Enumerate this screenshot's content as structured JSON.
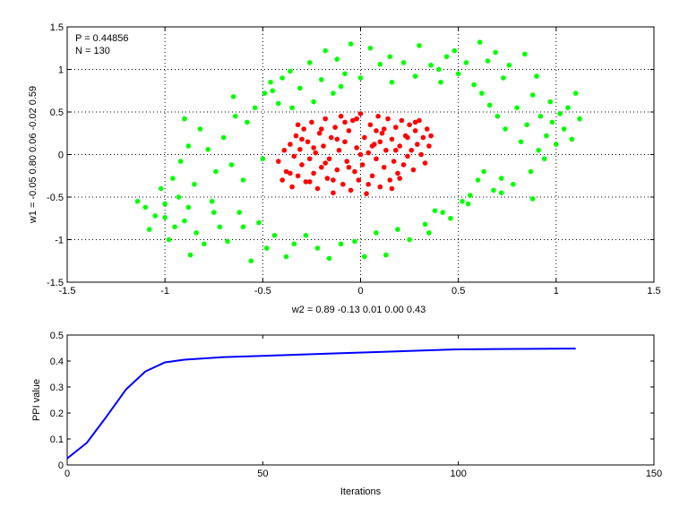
{
  "chart_data": [
    {
      "type": "scatter",
      "annotations": [
        "P = 0.44856",
        "N = 130"
      ],
      "xlabel": "w2 = 0.89  -0.13  0.01  0.00  0.43",
      "ylabel": "w1 = -0.05  0.80  0.06  -0.02  0.59",
      "xlim": [
        -1.5,
        1.5
      ],
      "ylim": [
        -1.5,
        1.5
      ],
      "xticks": [
        -1.5,
        -1,
        -0.5,
        0,
        0.5,
        1,
        1.5
      ],
      "yticks": [
        -1.5,
        -1,
        -0.5,
        0,
        0.5,
        1,
        1.5
      ],
      "xtick_labels": [
        "-1.5",
        "-1",
        "-0.5",
        "0",
        "0.5",
        "1",
        "1.5"
      ],
      "ytick_labels": [
        "-1.5",
        "-1",
        "-0.5",
        "0",
        "0.5",
        "1",
        "1.5"
      ],
      "grid": true,
      "series": [
        {
          "color": "#00ff00",
          "points": [
            [
              -1.14,
              -0.55
            ],
            [
              -1.1,
              -0.62
            ],
            [
              -1.08,
              -0.88
            ],
            [
              -1.05,
              -0.72
            ],
            [
              -1.02,
              -0.4
            ],
            [
              -1.0,
              -0.74
            ],
            [
              -0.98,
              -1.0
            ],
            [
              -0.96,
              -0.28
            ],
            [
              -0.95,
              -0.85
            ],
            [
              -0.93,
              -0.5
            ],
            [
              -0.92,
              -0.08
            ],
            [
              -0.9,
              -0.78
            ],
            [
              -0.88,
              0.1
            ],
            [
              -0.87,
              -1.18
            ],
            [
              -0.85,
              -0.35
            ],
            [
              -0.84,
              -0.92
            ],
            [
              -0.82,
              0.3
            ],
            [
              -0.8,
              -1.05
            ],
            [
              -0.78,
              0.06
            ],
            [
              -0.76,
              -0.55
            ],
            [
              -0.74,
              -0.2
            ],
            [
              -0.72,
              -0.85
            ],
            [
              -0.7,
              0.2
            ],
            [
              -0.68,
              -1.02
            ],
            [
              -0.66,
              -0.12
            ],
            [
              -0.64,
              0.45
            ],
            [
              -0.62,
              -0.68
            ],
            [
              -0.6,
              -0.3
            ],
            [
              -0.58,
              0.38
            ],
            [
              -0.56,
              -1.25
            ],
            [
              -0.54,
              0.55
            ],
            [
              -0.52,
              -0.8
            ],
            [
              -0.5,
              -0.05
            ],
            [
              -0.49,
              0.72
            ],
            [
              -0.48,
              -1.1
            ],
            [
              -0.46,
              0.85
            ],
            [
              -0.44,
              -0.95
            ],
            [
              -0.42,
              0.6
            ],
            [
              -0.4,
              0.9
            ],
            [
              -0.38,
              -1.2
            ],
            [
              -0.36,
              0.98
            ],
            [
              -0.34,
              -1.05
            ],
            [
              -0.31,
              0.78
            ],
            [
              -0.28,
              -0.95
            ],
            [
              -0.26,
              1.08
            ],
            [
              -0.24,
              0.62
            ],
            [
              -0.22,
              -1.1
            ],
            [
              -0.2,
              0.88
            ],
            [
              -0.18,
              1.22
            ],
            [
              -0.16,
              -1.22
            ],
            [
              -0.14,
              0.72
            ],
            [
              -0.12,
              1.12
            ],
            [
              -0.1,
              -1.05
            ],
            [
              -0.08,
              0.95
            ],
            [
              -0.05,
              1.3
            ],
            [
              -0.03,
              -1.02
            ],
            [
              0.0,
              0.9
            ],
            [
              0.02,
              -1.2
            ],
            [
              0.05,
              1.25
            ],
            [
              0.08,
              -0.92
            ],
            [
              0.1,
              1.06
            ],
            [
              0.13,
              -1.18
            ],
            [
              0.16,
              0.85
            ],
            [
              0.19,
              -0.88
            ],
            [
              0.22,
              1.08
            ],
            [
              0.25,
              -1.0
            ],
            [
              0.28,
              0.92
            ],
            [
              0.3,
              1.28
            ],
            [
              0.33,
              -0.82
            ],
            [
              0.36,
              1.05
            ],
            [
              0.38,
              -0.66
            ],
            [
              0.41,
              0.85
            ],
            [
              0.44,
              1.15
            ],
            [
              0.46,
              -0.75
            ],
            [
              0.48,
              1.22
            ],
            [
              0.5,
              0.95
            ],
            [
              0.52,
              -0.55
            ],
            [
              0.54,
              1.08
            ],
            [
              0.56,
              -0.48
            ],
            [
              0.58,
              0.82
            ],
            [
              0.6,
              -0.3
            ],
            [
              0.61,
              1.32
            ],
            [
              0.62,
              0.72
            ],
            [
              0.63,
              -0.2
            ],
            [
              0.65,
              1.1
            ],
            [
              0.66,
              0.58
            ],
            [
              0.68,
              -0.42
            ],
            [
              0.69,
              1.2
            ],
            [
              0.7,
              0.45
            ],
            [
              0.72,
              -0.28
            ],
            [
              0.73,
              0.9
            ],
            [
              0.74,
              0.3
            ],
            [
              0.76,
              1.05
            ],
            [
              0.78,
              -0.35
            ],
            [
              0.8,
              0.55
            ],
            [
              0.82,
              0.15
            ],
            [
              0.84,
              1.18
            ],
            [
              0.85,
              0.35
            ],
            [
              0.87,
              -0.2
            ],
            [
              0.88,
              0.7
            ],
            [
              0.9,
              0.92
            ],
            [
              0.91,
              0.05
            ],
            [
              0.92,
              0.45
            ],
            [
              0.94,
              -0.05
            ],
            [
              0.95,
              0.22
            ],
            [
              0.97,
              0.62
            ],
            [
              0.98,
              0.38
            ],
            [
              1.0,
              0.12
            ],
            [
              1.02,
              0.48
            ],
            [
              1.04,
              0.3
            ],
            [
              1.06,
              0.55
            ],
            [
              1.08,
              0.18
            ],
            [
              1.1,
              0.72
            ],
            [
              1.12,
              0.42
            ],
            [
              0.88,
              -0.52
            ],
            [
              0.72,
              -0.45
            ],
            [
              0.55,
              -0.58
            ],
            [
              0.42,
              -0.68
            ],
            [
              0.35,
              -0.92
            ],
            [
              -0.6,
              -0.85
            ],
            [
              -0.75,
              -0.68
            ],
            [
              -0.88,
              -0.62
            ],
            [
              -1.0,
              -0.58
            ],
            [
              -0.9,
              0.42
            ],
            [
              -0.65,
              0.68
            ],
            [
              -0.45,
              0.75
            ],
            [
              -0.35,
              0.55
            ],
            [
              -0.1,
              0.8
            ],
            [
              0.15,
              1.15
            ],
            [
              0.4,
              1.0
            ]
          ]
        },
        {
          "color": "#ff0000",
          "points": [
            [
              -0.42,
              -0.08
            ],
            [
              -0.4,
              -0.3
            ],
            [
              -0.39,
              0.05
            ],
            [
              -0.38,
              -0.2
            ],
            [
              -0.36,
              0.12
            ],
            [
              -0.35,
              -0.38
            ],
            [
              -0.34,
              -0.02
            ],
            [
              -0.33,
              0.22
            ],
            [
              -0.32,
              -0.25
            ],
            [
              -0.31,
              0.06
            ],
            [
              -0.3,
              -0.12
            ],
            [
              -0.29,
              0.3
            ],
            [
              -0.28,
              -0.32
            ],
            [
              -0.27,
              0.15
            ],
            [
              -0.26,
              -0.05
            ],
            [
              -0.25,
              0.38
            ],
            [
              -0.24,
              -0.22
            ],
            [
              -0.23,
              0.02
            ],
            [
              -0.22,
              -0.4
            ],
            [
              -0.21,
              0.25
            ],
            [
              -0.2,
              -0.15
            ],
            [
              -0.19,
              0.1
            ],
            [
              -0.18,
              0.42
            ],
            [
              -0.17,
              -0.28
            ],
            [
              -0.16,
              -0.05
            ],
            [
              -0.15,
              0.2
            ],
            [
              -0.14,
              -0.45
            ],
            [
              -0.13,
              0.32
            ],
            [
              -0.12,
              -0.18
            ],
            [
              -0.11,
              0.05
            ],
            [
              -0.1,
              0.45
            ],
            [
              -0.09,
              -0.35
            ],
            [
              -0.08,
              0.15
            ],
            [
              -0.07,
              -0.08
            ],
            [
              -0.06,
              0.28
            ],
            [
              -0.05,
              -0.42
            ],
            [
              -0.04,
              0.4
            ],
            [
              -0.03,
              -0.2
            ],
            [
              -0.02,
              0.08
            ],
            [
              -0.01,
              -0.3
            ],
            [
              0.0,
              0.48
            ],
            [
              0.01,
              -0.12
            ],
            [
              0.02,
              0.2
            ],
            [
              0.03,
              -0.46
            ],
            [
              0.04,
              0.02
            ],
            [
              0.05,
              0.35
            ],
            [
              0.06,
              -0.25
            ],
            [
              0.07,
              0.12
            ],
            [
              0.08,
              -0.05
            ],
            [
              0.09,
              0.45
            ],
            [
              0.1,
              -0.38
            ],
            [
              0.11,
              0.25
            ],
            [
              0.12,
              -0.15
            ],
            [
              0.13,
              0.05
            ],
            [
              0.14,
              0.42
            ],
            [
              0.15,
              -0.3
            ],
            [
              0.16,
              0.18
            ],
            [
              0.17,
              -0.08
            ],
            [
              0.18,
              0.32
            ],
            [
              0.19,
              -0.22
            ],
            [
              0.2,
              0.1
            ],
            [
              0.21,
              0.4
            ],
            [
              0.22,
              -0.12
            ],
            [
              0.23,
              0.22
            ],
            [
              0.24,
              -0.02
            ],
            [
              0.25,
              0.35
            ],
            [
              0.26,
              0.05
            ],
            [
              0.27,
              -0.18
            ],
            [
              0.28,
              0.28
            ],
            [
              0.29,
              0.12
            ],
            [
              0.3,
              0.4
            ],
            [
              0.31,
              0.0
            ],
            [
              0.32,
              0.2
            ],
            [
              0.33,
              -0.1
            ],
            [
              0.34,
              0.3
            ],
            [
              0.35,
              0.1
            ],
            [
              0.36,
              0.22
            ],
            [
              -0.36,
              -0.22
            ],
            [
              -0.3,
              0.18
            ],
            [
              -0.24,
              0.08
            ],
            [
              -0.18,
              -0.1
            ],
            [
              -0.12,
              0.18
            ],
            [
              -0.06,
              -0.15
            ],
            [
              0.0,
              0.0
            ],
            [
              0.06,
              0.1
            ],
            [
              0.12,
              0.3
            ],
            [
              0.18,
              0.05
            ],
            [
              0.24,
              0.2
            ],
            [
              -0.2,
              0.3
            ],
            [
              -0.08,
              0.38
            ],
            [
              0.04,
              -0.35
            ],
            [
              0.16,
              -0.4
            ],
            [
              -0.26,
              -0.32
            ],
            [
              -0.14,
              -0.3
            ],
            [
              0.08,
              0.28
            ],
            [
              0.2,
              -0.28
            ],
            [
              0.28,
              0.38
            ],
            [
              -0.32,
              0.35
            ],
            [
              -0.02,
              0.42
            ],
            [
              0.1,
              0.15
            ]
          ]
        }
      ]
    },
    {
      "type": "line",
      "xlabel": "Iterations",
      "ylabel": "PPI value",
      "xlim": [
        0,
        150
      ],
      "ylim": [
        0,
        0.5
      ],
      "xticks": [
        0,
        50,
        100,
        150
      ],
      "yticks": [
        0,
        0.1,
        0.2,
        0.3,
        0.4,
        0.5
      ],
      "xtick_labels": [
        "0",
        "50",
        "100",
        "150"
      ],
      "ytick_labels": [
        "0",
        "0.1",
        "0.2",
        "0.3",
        "0.4",
        "0.5"
      ],
      "grid": false,
      "series": [
        {
          "color": "#0000ff",
          "x": [
            0,
            5,
            10,
            15,
            20,
            25,
            30,
            40,
            50,
            60,
            70,
            80,
            90,
            100,
            110,
            120,
            130
          ],
          "y": [
            0.025,
            0.085,
            0.185,
            0.29,
            0.36,
            0.395,
            0.405,
            0.415,
            0.42,
            0.425,
            0.43,
            0.435,
            0.44,
            0.445,
            0.446,
            0.447,
            0.448
          ]
        }
      ]
    }
  ]
}
